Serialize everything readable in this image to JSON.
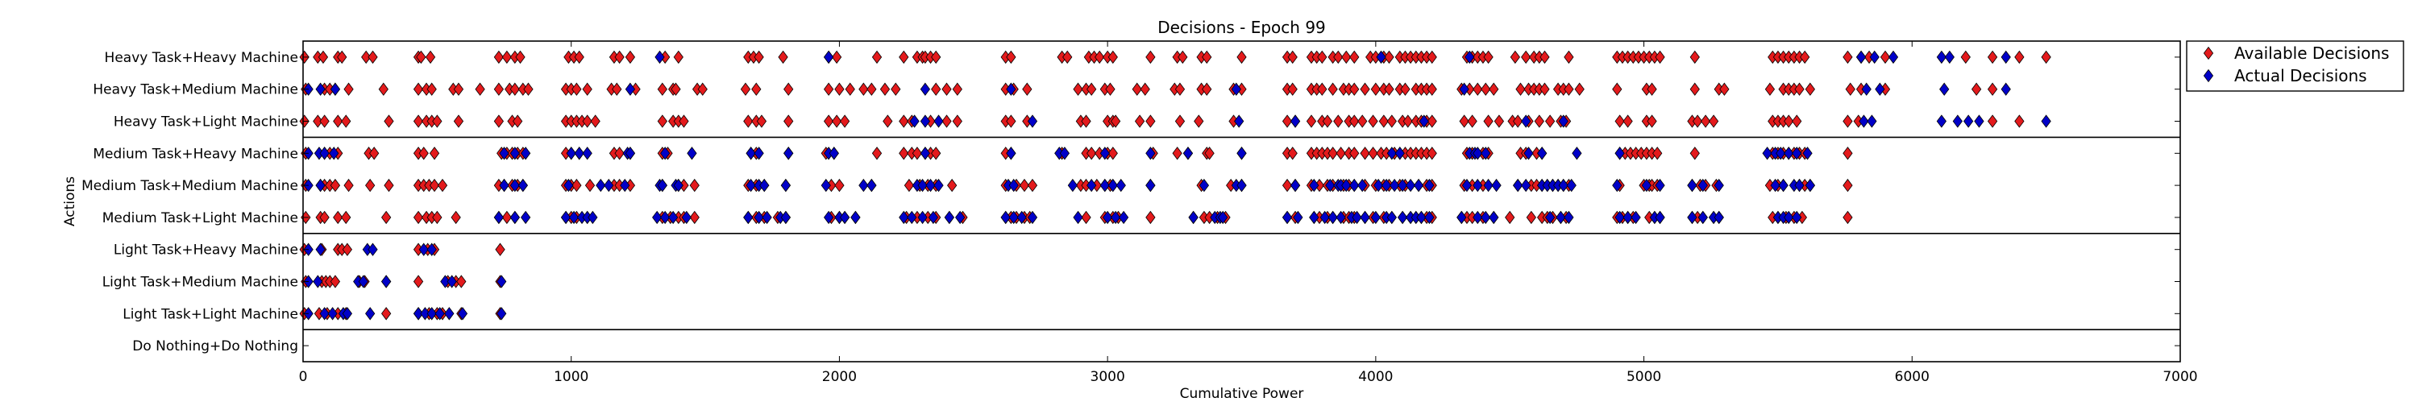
{
  "chart_data": {
    "type": "scatter",
    "title": "Decisions - Epoch 99",
    "xlabel": "Cumulative Power",
    "ylabel": "Actions",
    "xlim": [
      0,
      7000
    ],
    "xticks": [
      0,
      1000,
      2000,
      3000,
      4000,
      5000,
      6000,
      7000
    ],
    "categories": [
      "Heavy Task+Heavy Machine",
      "Heavy Task+Medium Machine",
      "Heavy Task+Light Machine",
      "Medium Task+Heavy Machine",
      "Medium Task+Medium Machine",
      "Medium Task+Light Machine",
      "Light Task+Heavy Machine",
      "Light Task+Medium Machine",
      "Light Task+Light Machine",
      "Do Nothing+Do Nothing"
    ],
    "group_separators_after": [
      2,
      5,
      8
    ],
    "grid": false,
    "legend_position": "outside-right",
    "series": [
      {
        "name": "Available Decisions",
        "color": "#e31a1c",
        "marker": "diamond",
        "points": {
          "Heavy Task+Heavy Machine": [
            5,
            55,
            75,
            130,
            145,
            235,
            260,
            430,
            440,
            475,
            730,
            760,
            790,
            810,
            990,
            1010,
            1030,
            1160,
            1180,
            1220,
            1350,
            1400,
            1660,
            1680,
            1700,
            1790,
            1960,
            1990,
            2140,
            2240,
            2290,
            2310,
            2320,
            2340,
            2360,
            2620,
            2640,
            2830,
            2850,
            2930,
            2950,
            2970,
            3000,
            3020,
            3160,
            3260,
            3280,
            3350,
            3370,
            3500,
            3670,
            3690,
            3760,
            3780,
            3800,
            3840,
            3860,
            3890,
            3920,
            3980,
            4000,
            4030,
            4050,
            4090,
            4110,
            4130,
            4150,
            4170,
            4190,
            4210,
            4340,
            4360,
            4380,
            4400,
            4420,
            4520,
            4560,
            4590,
            4610,
            4630,
            4720,
            4900,
            4920,
            4940,
            4960,
            4980,
            5000,
            5020,
            5040,
            5060,
            5190,
            5480,
            5500,
            5520,
            5540,
            5560,
            5580,
            5600,
            5760,
            5810,
            5840,
            5900,
            6200,
            6300,
            6400,
            6500
          ],
          "Heavy Task+Medium Machine": [
            10,
            80,
            100,
            120,
            170,
            300,
            430,
            460,
            480,
            560,
            580,
            660,
            730,
            770,
            790,
            820,
            840,
            980,
            1000,
            1020,
            1060,
            1150,
            1170,
            1240,
            1340,
            1380,
            1390,
            1470,
            1490,
            1650,
            1690,
            1810,
            1960,
            2000,
            2040,
            2090,
            2120,
            2170,
            2210,
            2360,
            2400,
            2440,
            2620,
            2650,
            2700,
            2890,
            2920,
            2940,
            2990,
            3010,
            3110,
            3140,
            3250,
            3270,
            3350,
            3370,
            3470,
            3500,
            3670,
            3690,
            3760,
            3780,
            3800,
            3840,
            3880,
            3900,
            3920,
            3960,
            4000,
            4030,
            4050,
            4090,
            4110,
            4150,
            4170,
            4190,
            4210,
            4320,
            4350,
            4380,
            4410,
            4440,
            4540,
            4570,
            4590,
            4610,
            4630,
            4680,
            4700,
            4720,
            4760,
            4900,
            5010,
            5030,
            5190,
            5280,
            5300,
            5470,
            5520,
            5540,
            5560,
            5580,
            5620,
            5770,
            5810,
            5900,
            6240,
            6300
          ],
          "Heavy Task+Light Machine": [
            5,
            55,
            80,
            130,
            160,
            320,
            430,
            460,
            480,
            500,
            580,
            730,
            780,
            800,
            980,
            1000,
            1020,
            1040,
            1060,
            1090,
            1340,
            1380,
            1400,
            1420,
            1660,
            1690,
            1710,
            1810,
            1960,
            1990,
            2020,
            2180,
            2240,
            2270,
            2340,
            2400,
            2440,
            2620,
            2640,
            2700,
            2900,
            2920,
            3000,
            3020,
            3030,
            3120,
            3160,
            3270,
            3340,
            3470,
            3670,
            3700,
            3760,
            3800,
            3820,
            3860,
            3900,
            3920,
            3950,
            3990,
            4030,
            4060,
            4100,
            4120,
            4150,
            4170,
            4190,
            4210,
            4330,
            4360,
            4420,
            4460,
            4510,
            4530,
            4570,
            4610,
            4650,
            4690,
            4710,
            4910,
            4940,
            5010,
            5030,
            5180,
            5200,
            5230,
            5260,
            5480,
            5500,
            5520,
            5540,
            5570,
            5760,
            5800,
            6300,
            6400
          ],
          "Medium Task+Heavy Machine": [
            10,
            80,
            100,
            130,
            245,
            265,
            430,
            450,
            490,
            740,
            760,
            780,
            800,
            820,
            980,
            1000,
            1030,
            1160,
            1180,
            1220,
            1340,
            1360,
            1670,
            1690,
            1810,
            1950,
            1980,
            2140,
            2240,
            2270,
            2290,
            2320,
            2340,
            2360,
            2620,
            2640,
            2830,
            2920,
            2940,
            2970,
            3000,
            3020,
            3170,
            3260,
            3300,
            3370,
            3380,
            3500,
            3670,
            3690,
            3760,
            3780,
            3800,
            3820,
            3840,
            3870,
            3900,
            3920,
            3960,
            3990,
            4020,
            4040,
            4070,
            4090,
            4110,
            4130,
            4150,
            4170,
            4190,
            4210,
            4340,
            4360,
            4400,
            4420,
            4540,
            4560,
            4600,
            4620,
            4910,
            4930,
            4950,
            4970,
            4990,
            5010,
            5030,
            5050,
            5190,
            5480,
            5500,
            5520,
            5540,
            5560,
            5580,
            5600,
            5760
          ],
          "Medium Task+Medium Machine": [
            10,
            65,
            80,
            100,
            120,
            170,
            250,
            320,
            430,
            450,
            470,
            490,
            520,
            730,
            750,
            780,
            800,
            820,
            980,
            1000,
            1020,
            1070,
            1160,
            1180,
            1220,
            1340,
            1400,
            1420,
            1460,
            1660,
            1690,
            1720,
            1800,
            1970,
            2000,
            2120,
            2260,
            2300,
            2330,
            2360,
            2420,
            2620,
            2660,
            2690,
            2720,
            2900,
            2920,
            2960,
            2990,
            3010,
            3020,
            3160,
            3350,
            3460,
            3500,
            3670,
            3700,
            3760,
            3790,
            3820,
            3840,
            3880,
            3900,
            3920,
            3960,
            4000,
            4030,
            4050,
            4090,
            4110,
            4160,
            4190,
            4210,
            4330,
            4360,
            4400,
            4530,
            4580,
            4600,
            4620,
            4640,
            4660,
            4680,
            4700,
            4720,
            4910,
            5000,
            5020,
            5030,
            5050,
            5180,
            5210,
            5230,
            5270,
            5470,
            5500,
            5520,
            5580,
            5600,
            5620,
            5760
          ],
          "Medium Task+Light Machine": [
            10,
            65,
            80,
            130,
            160,
            310,
            430,
            460,
            480,
            500,
            570,
            730,
            760,
            790,
            980,
            1000,
            1020,
            1060,
            1340,
            1370,
            1400,
            1420,
            1460,
            1660,
            1690,
            1720,
            1770,
            1800,
            1970,
            2000,
            2020,
            2060,
            2250,
            2290,
            2330,
            2360,
            2410,
            2460,
            2620,
            2640,
            2660,
            2690,
            2710,
            2920,
            2990,
            3020,
            3040,
            3160,
            3320,
            3360,
            3380,
            3410,
            3440,
            3670,
            3700,
            3770,
            3790,
            3820,
            3840,
            3880,
            3900,
            3920,
            3960,
            3990,
            4030,
            4060,
            4100,
            4130,
            4150,
            4170,
            4190,
            4210,
            4320,
            4340,
            4360,
            4400,
            4440,
            4500,
            4580,
            4620,
            4640,
            4660,
            4690,
            4710,
            4900,
            4920,
            4940,
            4960,
            5020,
            5040,
            5060,
            5180,
            5200,
            5220,
            5260,
            5280,
            5480,
            5500,
            5530,
            5560,
            5590,
            5760
          ],
          "Light Task+Heavy Machine": [
            5,
            70,
            130,
            145,
            165,
            430,
            465,
            490,
            735
          ],
          "Light Task+Medium Machine": [
            10,
            70,
            85,
            100,
            120,
            210,
            230,
            310,
            430,
            540,
            570,
            590,
            735
          ],
          "Light Task+Light Machine": [
            5,
            60,
            90,
            130,
            160,
            310,
            430,
            470,
            500,
            520,
            590,
            735
          ],
          "Do Nothing+Do Nothing": []
        }
      },
      {
        "name": "Actual Decisions",
        "color": "#0000c8",
        "marker": "diamond",
        "points": {
          "Heavy Task+Heavy Machine": [
            1330,
            1960,
            4020,
            4350,
            5810,
            5860,
            5930,
            6110,
            6140,
            6350
          ],
          "Heavy Task+Medium Machine": [
            20,
            65,
            120,
            1220,
            2320,
            2640,
            3480,
            4330,
            5830,
            5880,
            6120,
            6350
          ],
          "Heavy Task+Light Machine": [
            2280,
            2320,
            2370,
            2720,
            3490,
            3700,
            4180,
            4560,
            4700,
            5820,
            5850,
            6110,
            6170,
            6210,
            6250,
            6500
          ],
          "Medium Task+Heavy Machine": [
            20,
            60,
            80,
            115,
            750,
            790,
            830,
            1000,
            1030,
            1060,
            1210,
            1220,
            1350,
            1450,
            1670,
            1700,
            1810,
            1960,
            1980,
            2320,
            2640,
            2820,
            2840,
            2990,
            3160,
            3300,
            3500,
            4060,
            4090,
            4350,
            4370,
            4380,
            4410,
            4570,
            4620,
            4750,
            4910,
            5460,
            5490,
            5510,
            5540,
            5570,
            5610
          ],
          "Medium Task+Medium Machine": [
            20,
            65,
            750,
            790,
            820,
            990,
            1110,
            1140,
            1200,
            1330,
            1340,
            1390,
            1400,
            1670,
            1700,
            1720,
            1800,
            1950,
            2090,
            2120,
            2290,
            2310,
            2340,
            2370,
            2630,
            2650,
            2870,
            2940,
            2990,
            3020,
            3050,
            3160,
            3360,
            3480,
            3500,
            3700,
            3770,
            3830,
            3860,
            3870,
            3890,
            3920,
            3950,
            4010,
            4040,
            4070,
            4100,
            4130,
            4160,
            4200,
            4340,
            4380,
            4420,
            4450,
            4530,
            4560,
            4620,
            4640,
            4660,
            4680,
            4700,
            4730,
            4900,
            5010,
            5060,
            5180,
            5220,
            5280,
            5490,
            5520,
            5560,
            5580,
            5620
          ],
          "Medium Task+Light Machine": [
            730,
            790,
            830,
            980,
            1010,
            1040,
            1060,
            1080,
            1320,
            1350,
            1380,
            1430,
            1660,
            1700,
            1730,
            1780,
            1800,
            1960,
            2000,
            2020,
            2060,
            2240,
            2270,
            2310,
            2350,
            2410,
            2450,
            2620,
            2650,
            2680,
            2720,
            2890,
            3000,
            3030,
            3060,
            3320,
            3400,
            3420,
            3430,
            3670,
            3710,
            3770,
            3810,
            3840,
            3870,
            3910,
            3930,
            3960,
            4000,
            4040,
            4060,
            4100,
            4130,
            4150,
            4170,
            4200,
            4320,
            4380,
            4410,
            4440,
            4650,
            4690,
            4720,
            4910,
            4940,
            4970,
            5040,
            5060,
            5180,
            5220,
            5260,
            5280,
            5500,
            5520,
            5540,
            5570
          ],
          "Light Task+Heavy Machine": [
            20,
            65,
            240,
            260,
            450,
            480
          ],
          "Light Task+Medium Machine": [
            20,
            55,
            205,
            225,
            310,
            530,
            555,
            740
          ],
          "Light Task+Light Machine": [
            20,
            80,
            110,
            150,
            165,
            250,
            430,
            455,
            480,
            510,
            545,
            595,
            740
          ],
          "Do Nothing+Do Nothing": []
        }
      }
    ]
  }
}
